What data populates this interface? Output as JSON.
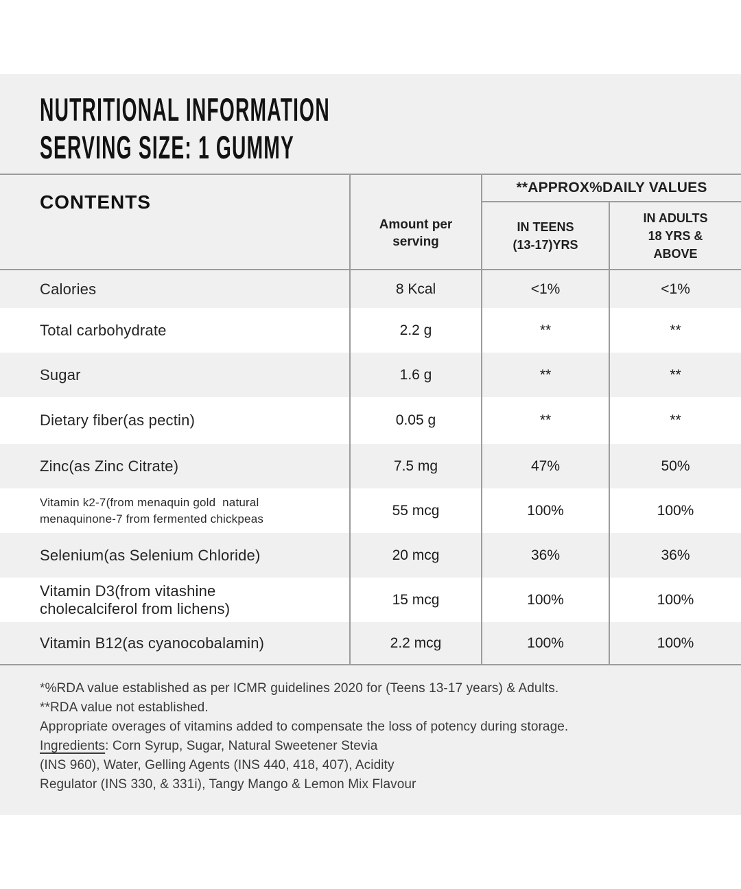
{
  "header": {
    "title_line1": "NUTRITIONAL INFORMATION",
    "title_line2": "SERVING SIZE: 1 GUMMY"
  },
  "table": {
    "contents_header": "CONTENTS",
    "amount_header_lines": [
      "Amount per",
      "serving"
    ],
    "daily_values_header": "**APPROX%DAILY VALUES",
    "teens_header_lines": [
      "IN TEENS",
      "(13-17)YRS"
    ],
    "adults_header_lines": [
      "IN ADULTS",
      "18 YRS &",
      "ABOVE"
    ],
    "rows": [
      {
        "label": "Calories",
        "amount": "8 Kcal",
        "teens": "<1%",
        "adults": "<1%"
      },
      {
        "label": "Total carbohydrate",
        "amount": "2.2 g",
        "teens": "**",
        "adults": "**"
      },
      {
        "label": "Sugar",
        "amount": "1.6 g",
        "teens": "**",
        "adults": "**"
      },
      {
        "label": "Dietary fiber(as pectin)",
        "amount": "0.05 g",
        "teens": "**",
        "adults": "**"
      },
      {
        "label": "Zinc(as Zinc Citrate)",
        "amount": "7.5 mg",
        "teens": "47%",
        "adults": "50%"
      },
      {
        "label_lines": [
          "Vitamin k2-7(from menaquin gold  natural",
          "menaquinone-7 from fermented chickpeas"
        ],
        "amount": "55 mcg",
        "teens": "100%",
        "adults": "100%"
      },
      {
        "label": "Selenium(as Selenium Chloride)",
        "amount": "20 mcg",
        "teens": "36%",
        "adults": "36%"
      },
      {
        "label_lines": [
          "Vitamin D3(from vitashine",
          "cholecalciferol from lichens)"
        ],
        "amount": "15 mcg",
        "teens": "100%",
        "adults": "100%"
      },
      {
        "label": "Vitamin B12(as cyanocobalamin)",
        "amount": "2.2 mcg",
        "teens": "100%",
        "adults": "100%"
      }
    ]
  },
  "notes": {
    "rda_note1": "*%RDA value established as per ICMR guidelines 2020 for (Teens 13-17 years) & Adults.",
    "rda_note2": "**RDA value not established.",
    "overage_note": "Appropriate overages of vitamins added to compensate the loss of potency during storage.",
    "ingredients_label": "Ingredients",
    "ingredients_line1_rest": ": Corn Syrup, Sugar, Natural Sweetener Stevia",
    "ingredients_line2": "(INS 960), Water, Gelling Agents (INS 440, 418, 407), Acidity",
    "ingredients_line3": "Regulator (INS 330, & 331i), Tangy Mango & Lemon Mix Flavour"
  },
  "colors": {
    "band_gray": "#f0f0f0",
    "border_gray": "#9c9c9c",
    "text_dark": "#1f1f1f"
  }
}
